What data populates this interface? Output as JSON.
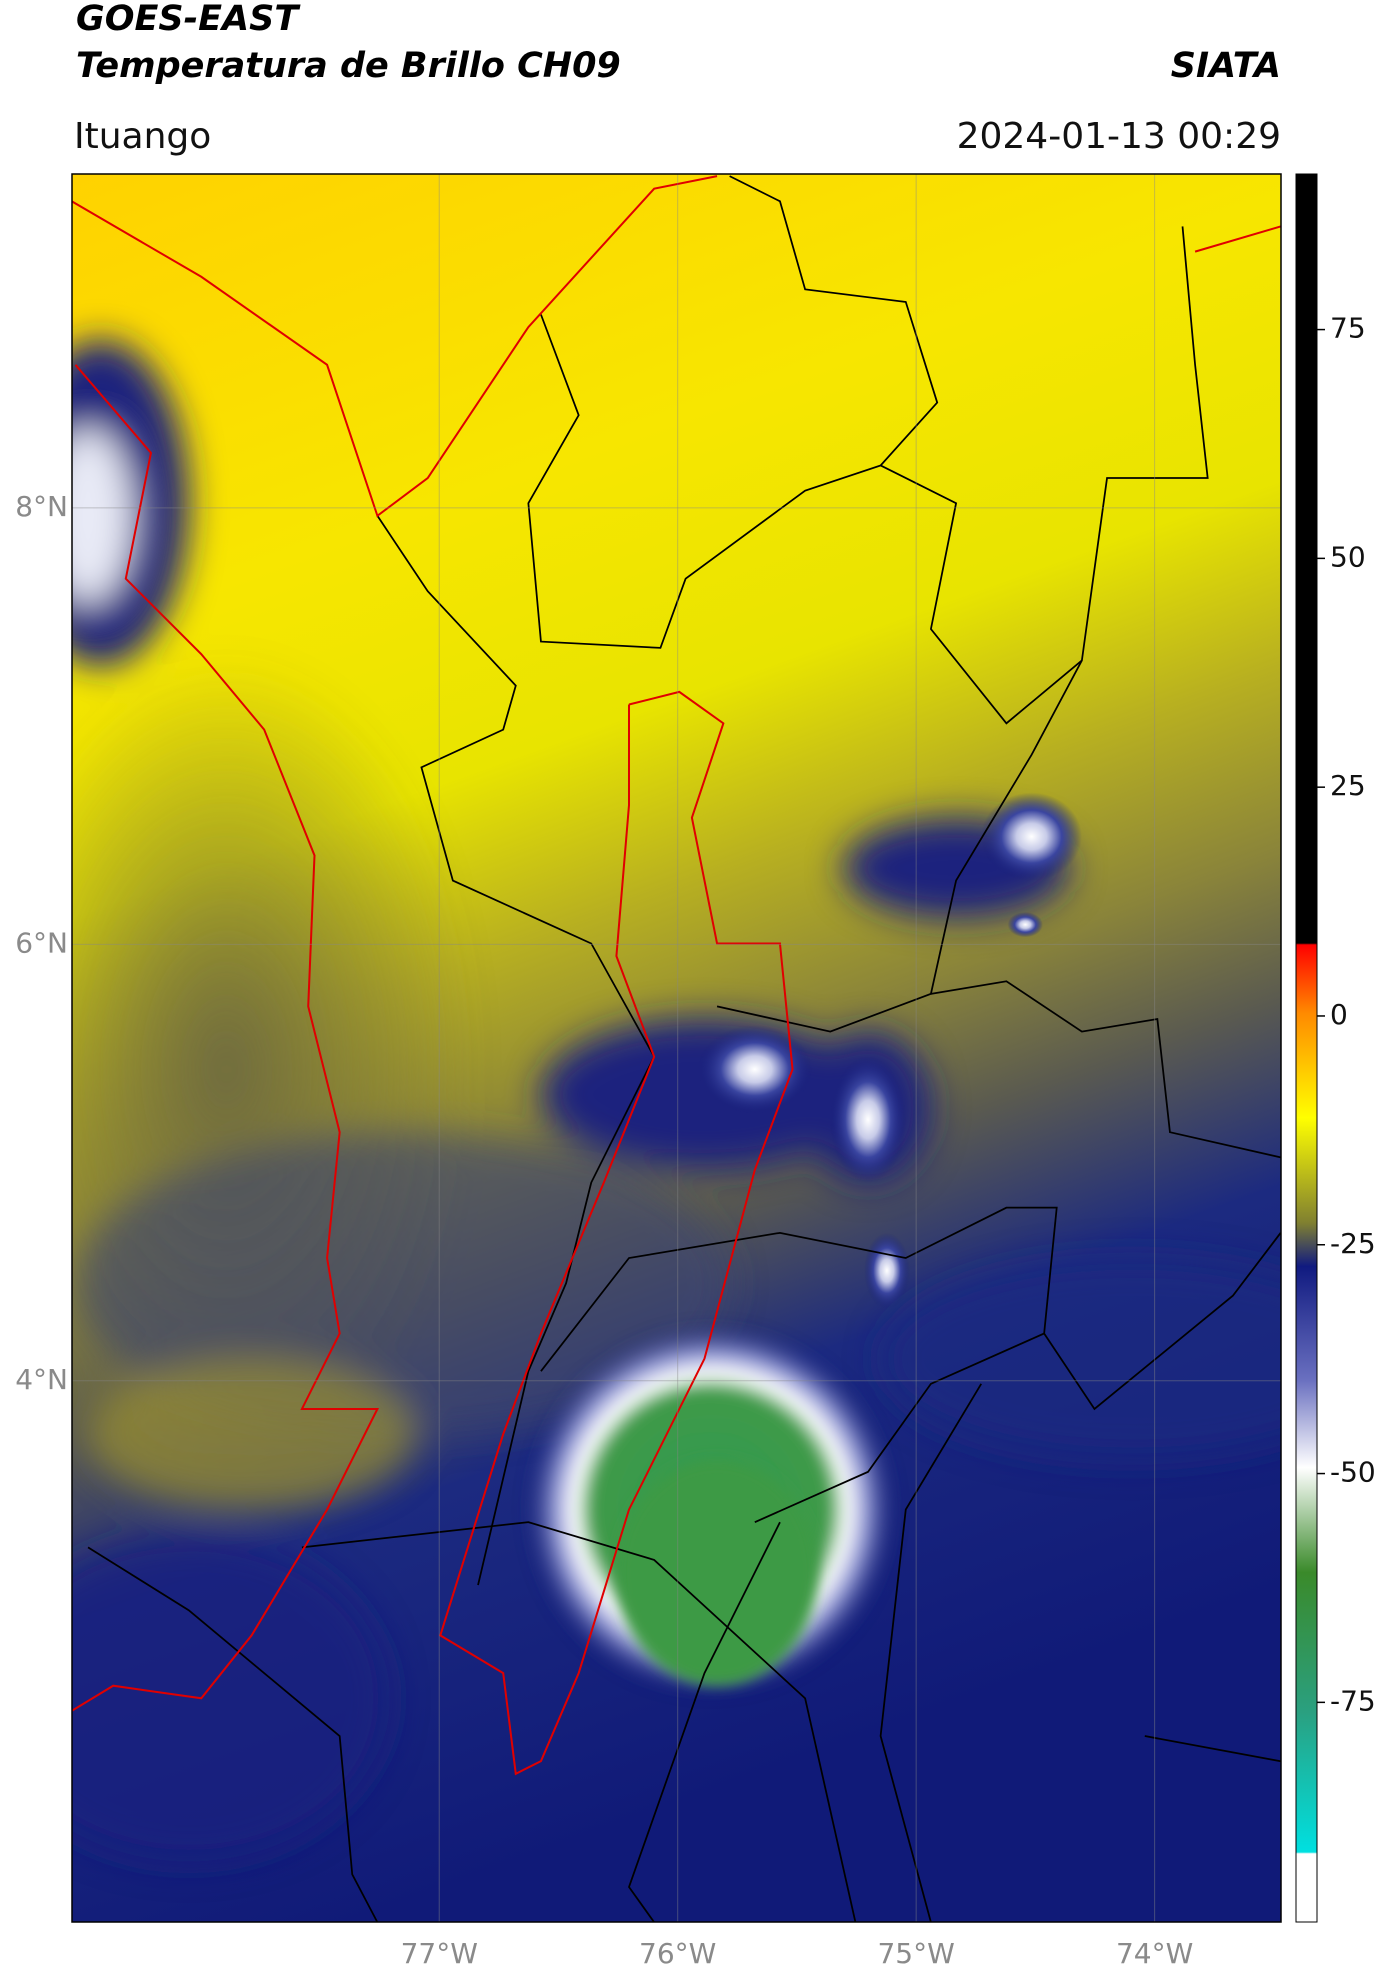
{
  "header": {
    "title": "GOES-EAST",
    "subtitle": "Temperatura de Brillo CH09",
    "brand": "SIATA",
    "location": "Ituango",
    "datetime": "2024-01-13 00:29"
  },
  "map": {
    "lonlim": [
      -78.54,
      -73.47
    ],
    "latlim": [
      1.52,
      9.53
    ],
    "lon_ticks": [
      {
        "value": -77,
        "label": "77°W"
      },
      {
        "value": -76,
        "label": "76°W"
      },
      {
        "value": -75,
        "label": "75°W"
      },
      {
        "value": -74,
        "label": "74°W"
      }
    ],
    "lat_ticks": [
      {
        "value": 8,
        "label": "8°N"
      },
      {
        "value": 6,
        "label": "6°N"
      },
      {
        "value": 4,
        "label": "4°N"
      }
    ],
    "grid": true
  },
  "colorbar": {
    "lim": [
      -99,
      92
    ],
    "ticks": [
      75,
      50,
      25,
      0,
      -25,
      -50,
      -75
    ]
  }
}
